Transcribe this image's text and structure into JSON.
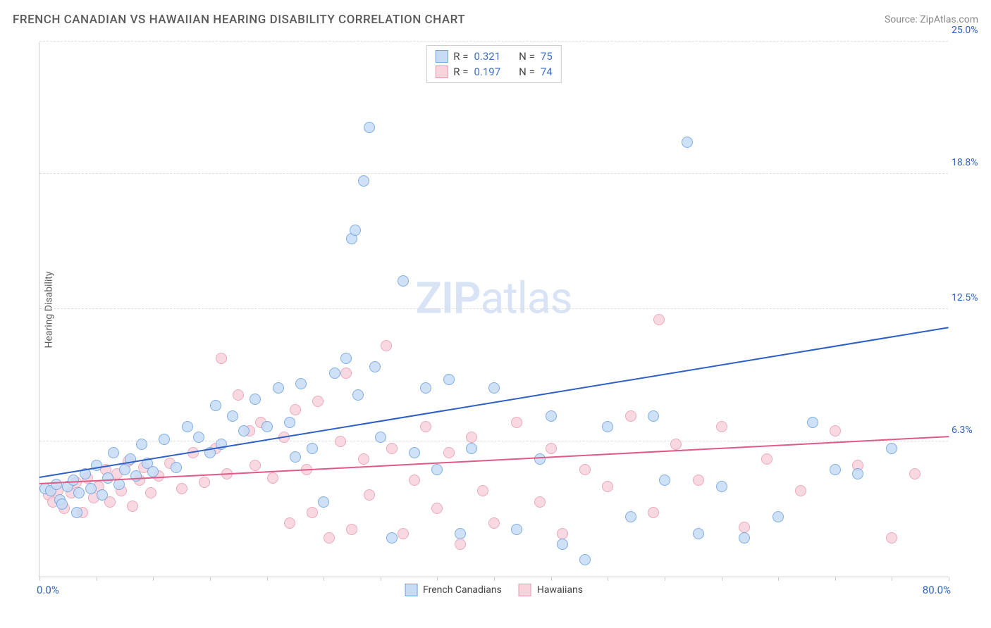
{
  "header": {
    "title": "FRENCH CANADIAN VS HAWAIIAN HEARING DISABILITY CORRELATION CHART",
    "source": "Source: ZipAtlas.com"
  },
  "watermark": {
    "bold": "ZIP",
    "light": "atlas"
  },
  "chart": {
    "type": "scatter",
    "xlim": [
      0,
      80
    ],
    "ylim": [
      0,
      25
    ],
    "x_min_label": "0.0%",
    "x_max_label": "80.0%",
    "y_ticks": [
      6.3,
      12.5,
      18.8,
      25.0
    ],
    "y_tick_labels": [
      "6.3%",
      "12.5%",
      "18.8%",
      "25.0%"
    ],
    "x_tick_step": 5,
    "background_color": "#ffffff",
    "grid_color": "#dddddd",
    "axis_color": "#cccccc",
    "ylabel": "Hearing Disability",
    "point_radius": 8,
    "point_stroke_width": 1.5,
    "series": {
      "a": {
        "name": "French Canadians",
        "fill": "#c6dcf5",
        "stroke": "#6b9fe0",
        "trend_color": "#2d5fc4",
        "r_label": "R =",
        "r_value": "0.321",
        "n_label": "N =",
        "n_value": "75",
        "trend": {
          "x1": 0,
          "y1": 4.6,
          "x2": 80,
          "y2": 11.6
        },
        "points": [
          [
            0.5,
            4.1
          ],
          [
            1,
            4.0
          ],
          [
            1.5,
            4.3
          ],
          [
            1.8,
            3.6
          ],
          [
            2,
            3.4
          ],
          [
            2.5,
            4.2
          ],
          [
            3,
            4.5
          ],
          [
            3.3,
            3.0
          ],
          [
            3.5,
            3.9
          ],
          [
            4,
            4.8
          ],
          [
            4.5,
            4.1
          ],
          [
            5,
            5.2
          ],
          [
            5.5,
            3.8
          ],
          [
            6,
            4.6
          ],
          [
            6.5,
            5.8
          ],
          [
            7,
            4.3
          ],
          [
            7.5,
            5.0
          ],
          [
            8,
            5.5
          ],
          [
            8.5,
            4.7
          ],
          [
            9,
            6.2
          ],
          [
            9.5,
            5.3
          ],
          [
            10,
            4.9
          ],
          [
            11,
            6.4
          ],
          [
            12,
            5.1
          ],
          [
            13,
            7.0
          ],
          [
            14,
            6.5
          ],
          [
            15,
            5.8
          ],
          [
            15.5,
            8.0
          ],
          [
            16,
            6.2
          ],
          [
            17,
            7.5
          ],
          [
            18,
            6.8
          ],
          [
            19,
            8.3
          ],
          [
            20,
            7.0
          ],
          [
            21,
            8.8
          ],
          [
            22,
            7.2
          ],
          [
            22.5,
            5.6
          ],
          [
            23,
            9.0
          ],
          [
            24,
            6.0
          ],
          [
            25,
            3.5
          ],
          [
            26,
            9.5
          ],
          [
            27,
            10.2
          ],
          [
            27.5,
            15.8
          ],
          [
            27.8,
            16.2
          ],
          [
            28,
            8.5
          ],
          [
            28.5,
            18.5
          ],
          [
            29,
            21.0
          ],
          [
            29.5,
            9.8
          ],
          [
            30,
            6.5
          ],
          [
            31,
            1.8
          ],
          [
            32,
            13.8
          ],
          [
            33,
            5.8
          ],
          [
            34,
            8.8
          ],
          [
            35,
            5.0
          ],
          [
            36,
            9.2
          ],
          [
            37,
            2.0
          ],
          [
            38,
            6.0
          ],
          [
            40,
            8.8
          ],
          [
            42,
            2.2
          ],
          [
            44,
            5.5
          ],
          [
            45,
            7.5
          ],
          [
            46,
            1.5
          ],
          [
            48,
            0.8
          ],
          [
            50,
            7.0
          ],
          [
            52,
            2.8
          ],
          [
            54,
            7.5
          ],
          [
            55,
            4.5
          ],
          [
            57,
            20.3
          ],
          [
            58,
            2.0
          ],
          [
            60,
            4.2
          ],
          [
            62,
            1.8
          ],
          [
            65,
            2.8
          ],
          [
            68,
            7.2
          ],
          [
            70,
            5.0
          ],
          [
            72,
            4.8
          ],
          [
            75,
            6.0
          ]
        ]
      },
      "b": {
        "name": "Hawaiians",
        "fill": "#f7d3dc",
        "stroke": "#e89bb0",
        "trend_color": "#e05a85",
        "r_label": "R =",
        "r_value": "0.197",
        "n_label": "N =",
        "n_value": "74",
        "trend": {
          "x1": 0,
          "y1": 4.3,
          "x2": 80,
          "y2": 6.5
        },
        "points": [
          [
            0.8,
            3.8
          ],
          [
            1.2,
            3.5
          ],
          [
            1.6,
            4.0
          ],
          [
            2.2,
            3.2
          ],
          [
            2.8,
            3.9
          ],
          [
            3.2,
            4.4
          ],
          [
            3.8,
            3.0
          ],
          [
            4.2,
            4.6
          ],
          [
            4.8,
            3.7
          ],
          [
            5.2,
            4.2
          ],
          [
            5.8,
            5.0
          ],
          [
            6.2,
            3.5
          ],
          [
            6.8,
            4.8
          ],
          [
            7.2,
            4.0
          ],
          [
            7.8,
            5.4
          ],
          [
            8.2,
            3.3
          ],
          [
            8.8,
            4.5
          ],
          [
            9.2,
            5.1
          ],
          [
            9.8,
            3.9
          ],
          [
            10.5,
            4.7
          ],
          [
            11.5,
            5.3
          ],
          [
            12.5,
            4.1
          ],
          [
            13.5,
            5.8
          ],
          [
            14.5,
            4.4
          ],
          [
            15.5,
            6.0
          ],
          [
            16,
            10.2
          ],
          [
            16.5,
            4.8
          ],
          [
            17.5,
            8.5
          ],
          [
            18.5,
            6.8
          ],
          [
            19,
            5.2
          ],
          [
            19.5,
            7.2
          ],
          [
            20.5,
            4.6
          ],
          [
            21.5,
            6.5
          ],
          [
            22,
            2.5
          ],
          [
            22.5,
            7.8
          ],
          [
            23.5,
            5.0
          ],
          [
            24,
            3.0
          ],
          [
            24.5,
            8.2
          ],
          [
            25.5,
            1.8
          ],
          [
            26.5,
            6.3
          ],
          [
            27,
            9.5
          ],
          [
            27.5,
            2.2
          ],
          [
            28.5,
            5.5
          ],
          [
            29,
            3.8
          ],
          [
            30.5,
            10.8
          ],
          [
            31,
            6.0
          ],
          [
            32,
            2.0
          ],
          [
            33,
            4.5
          ],
          [
            34,
            7.0
          ],
          [
            35,
            3.2
          ],
          [
            36,
            5.8
          ],
          [
            37,
            1.5
          ],
          [
            38,
            6.5
          ],
          [
            39,
            4.0
          ],
          [
            40,
            2.5
          ],
          [
            42,
            7.2
          ],
          [
            44,
            3.5
          ],
          [
            45,
            6.0
          ],
          [
            46,
            2.0
          ],
          [
            48,
            5.0
          ],
          [
            50,
            4.2
          ],
          [
            52,
            7.5
          ],
          [
            54,
            3.0
          ],
          [
            54.5,
            12.0
          ],
          [
            56,
            6.2
          ],
          [
            58,
            4.5
          ],
          [
            60,
            7.0
          ],
          [
            62,
            2.3
          ],
          [
            64,
            5.5
          ],
          [
            67,
            4.0
          ],
          [
            70,
            6.8
          ],
          [
            72,
            5.2
          ],
          [
            75,
            1.8
          ],
          [
            77,
            4.8
          ]
        ]
      }
    },
    "legend_bottom": [
      {
        "key": "a",
        "label": "French Canadians"
      },
      {
        "key": "b",
        "label": "Hawaiians"
      }
    ]
  }
}
